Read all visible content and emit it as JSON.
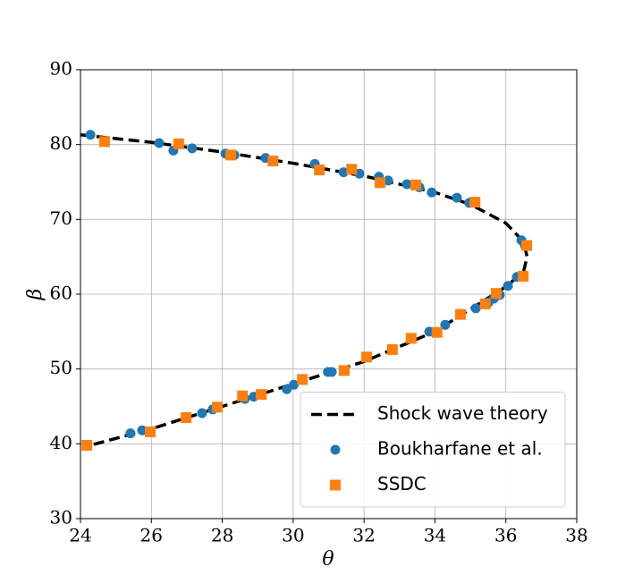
{
  "chart_data": {
    "type": "scatter",
    "x_label": "θ",
    "y_label": "β",
    "xlim": [
      24,
      38
    ],
    "ylim": [
      30,
      90
    ],
    "xticks": [
      24,
      26,
      28,
      30,
      32,
      34,
      36,
      38
    ],
    "yticks": [
      30,
      40,
      50,
      60,
      70,
      80,
      90
    ],
    "grid": true,
    "legend": "lower right",
    "series": [
      {
        "name": "Shock wave theory",
        "type": "line",
        "dash": true,
        "color": "#000000",
        "x": [
          24,
          26,
          28,
          30,
          32,
          34,
          35,
          36,
          36.5,
          36.6,
          36.5,
          36,
          35,
          34,
          32,
          30,
          28,
          26,
          24.2
        ],
        "values": [
          81.3,
          80.3,
          79.0,
          77.5,
          75.8,
          73.6,
          72.0,
          69.5,
          67.0,
          65.0,
          63.0,
          61.0,
          58.0,
          55.0,
          51.0,
          48.0,
          45.0,
          42.0,
          39.7
        ]
      },
      {
        "name": "Boukharfane et al.",
        "type": "scatter",
        "marker": "circle",
        "color": "#1f77b4",
        "x": [
          24.28,
          26.22,
          26.62,
          27.15,
          28.09,
          28.34,
          29.22,
          30.61,
          31.42,
          31.87,
          32.42,
          32.68,
          33.21,
          33.56,
          33.91,
          34.62,
          34.97,
          36.44,
          36.54,
          36.31,
          36.06,
          35.83,
          35.66,
          35.51,
          35.15,
          34.29,
          33.84,
          31.09,
          30.98,
          30.02,
          29.82,
          28.89,
          28.64,
          27.73,
          27.43,
          25.74,
          25.41
        ],
        "values": [
          81.3,
          80.2,
          79.2,
          79.5,
          78.8,
          78.6,
          78.2,
          77.4,
          76.3,
          76.1,
          75.7,
          75.2,
          74.7,
          74.3,
          73.6,
          72.9,
          72.2,
          67.2,
          66.5,
          62.3,
          61.1,
          59.9,
          59.4,
          58.9,
          58.1,
          55.9,
          55.0,
          49.6,
          49.6,
          47.9,
          47.3,
          46.3,
          46.0,
          44.6,
          44.1,
          41.8,
          41.4
        ]
      },
      {
        "name": "SSDC",
        "type": "scatter",
        "marker": "square",
        "color": "#ff7f0e",
        "x": [
          24.68,
          26.77,
          28.24,
          29.43,
          30.74,
          31.65,
          32.45,
          33.46,
          35.13,
          36.59,
          36.49,
          35.73,
          35.42,
          34.72,
          34.06,
          33.33,
          32.8,
          32.07,
          31.44,
          30.26,
          29.1,
          28.57,
          27.86,
          26.98,
          25.97,
          24.18
        ],
        "values": [
          80.4,
          80.1,
          78.6,
          77.8,
          76.6,
          76.7,
          74.9,
          74.6,
          72.3,
          66.5,
          62.4,
          60.1,
          58.7,
          57.3,
          54.9,
          54.1,
          52.6,
          51.6,
          49.8,
          48.6,
          46.6,
          46.4,
          44.9,
          43.5,
          41.6,
          39.8
        ]
      }
    ]
  }
}
